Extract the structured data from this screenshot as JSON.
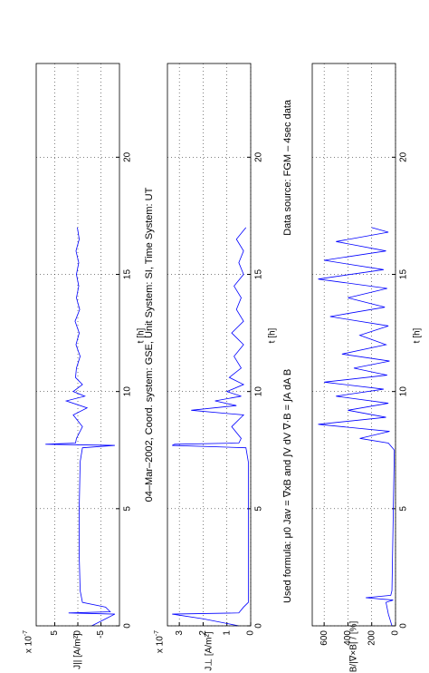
{
  "title": "04–Mar–2002, Coord. system: GSE, Unit System: SI, Time System: UT",
  "formula": "Used formula:  μ0 Jav = ∇xB  and  ∫V dV ∇·B = ∫A dA B",
  "data_source": "Data source: FGM – 4sec data",
  "chart_data": [
    {
      "type": "line",
      "xlabel": "t [h]",
      "ylabel": "J|| [A/m²]",
      "scale_label": "x 10",
      "scale_exponent": "-7",
      "xlim": [
        0,
        24
      ],
      "xticks": [
        0,
        5,
        10,
        15,
        20
      ],
      "ylim": [
        -9,
        9
      ],
      "yticks": [
        -5,
        0,
        5
      ],
      "grid": true,
      "x": [
        0,
        0.3,
        0.5,
        0.55,
        0.6,
        0.8,
        1.0,
        1.5,
        3,
        5,
        7,
        7.6,
        7.7,
        7.75,
        7.8,
        8,
        8.5,
        9,
        9.3,
        9.6,
        9.8,
        10,
        10.3,
        10.6,
        11,
        11.5,
        12,
        12.5,
        13,
        13.5,
        14,
        14.5,
        15,
        15.5,
        16,
        16.5,
        17
      ],
      "series": [
        {
          "color": "#0000ff",
          "values": [
            -3,
            -6,
            -8,
            2,
            -7,
            -6,
            -1,
            -0.5,
            -0.3,
            -0.3,
            -0.5,
            -1,
            -8,
            7,
            0.5,
            0.3,
            -1,
            1,
            -2,
            2.5,
            -1.5,
            1,
            -1,
            0.5,
            0.3,
            -0.5,
            0.4,
            -0.3,
            0.6,
            -0.4,
            0.3,
            -0.2,
            0.3,
            -0.2,
            0.4,
            -0.3,
            0.1
          ]
        }
      ]
    },
    {
      "type": "line",
      "xlabel": "t [h]",
      "ylabel": "J⊥ [A/m²]",
      "scale_label": "x 10",
      "scale_exponent": "-7",
      "xlim": [
        0,
        24
      ],
      "xticks": [
        0,
        5,
        10,
        15,
        20
      ],
      "ylim": [
        0,
        3.5
      ],
      "yticks": [
        0,
        1,
        2,
        3
      ],
      "grid": true,
      "x": [
        0,
        0.3,
        0.5,
        0.55,
        0.8,
        1,
        1.5,
        3,
        5,
        7,
        7.6,
        7.7,
        7.75,
        7.8,
        8,
        8.5,
        9,
        9.2,
        9.4,
        9.6,
        9.8,
        10,
        10.3,
        10.6,
        11,
        11.5,
        12,
        12.5,
        13,
        13.5,
        14,
        14.5,
        15,
        15.5,
        16,
        16.5,
        17
      ],
      "series": [
        {
          "color": "#0000ff",
          "values": [
            0.5,
            2,
            3.3,
            0.5,
            0.3,
            0.1,
            0.1,
            0.1,
            0.1,
            0.1,
            0.2,
            3.3,
            3.2,
            0.5,
            0.4,
            0.8,
            0.3,
            2.5,
            0.6,
            1.5,
            0.4,
            1.0,
            0.3,
            0.9,
            0.4,
            0.7,
            0.3,
            0.8,
            0.3,
            0.6,
            0.4,
            0.7,
            0.3,
            0.5,
            0.3,
            0.6,
            0.2
          ]
        }
      ]
    },
    {
      "type": "line",
      "xlabel": "t [h]",
      "ylabel": "∇·B/|∇×B| / [%]",
      "xlim": [
        0,
        24
      ],
      "xticks": [
        0,
        5,
        10,
        15,
        20
      ],
      "ylim": [
        0,
        700
      ],
      "yticks": [
        0,
        200,
        400,
        600
      ],
      "grid": true,
      "x": [
        0,
        0.5,
        1,
        1.1,
        1.2,
        1.3,
        1.5,
        7.5,
        7.8,
        8,
        8.3,
        8.6,
        8.9,
        9.2,
        9.5,
        9.8,
        10.1,
        10.4,
        10.7,
        11,
        11.3,
        11.6,
        12,
        12.4,
        12.8,
        13.2,
        13.6,
        14,
        14.4,
        14.8,
        15.2,
        15.6,
        16,
        16.4,
        16.8,
        17
      ],
      "series": [
        {
          "color": "#0000ff",
          "values": [
            30,
            60,
            80,
            20,
            250,
            40,
            30,
            10,
            60,
            300,
            50,
            650,
            80,
            400,
            60,
            500,
            100,
            600,
            70,
            350,
            50,
            450,
            80,
            300,
            60,
            550,
            90,
            400,
            70,
            650,
            100,
            600,
            80,
            500,
            60,
            200
          ]
        }
      ]
    }
  ]
}
